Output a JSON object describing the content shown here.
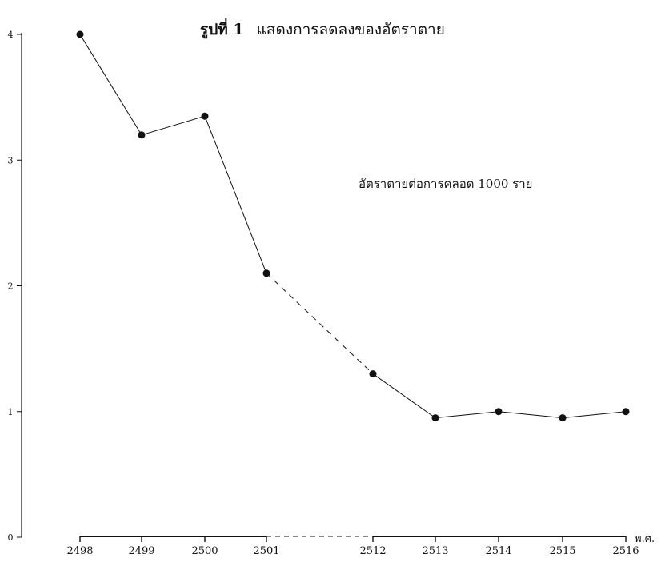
{
  "chart_data": {
    "type": "line",
    "title_figure": "รูปที่ 1",
    "title": "แสดงการลดลงของอัตราตาย",
    "annotation": "อัตราตายต่อการคลอด 1000 ราย",
    "xlabel": "พ.ศ.",
    "ylabel": "",
    "x_categories": [
      "2498",
      "2499",
      "2500",
      "2501",
      "2512",
      "2513",
      "2514",
      "2515",
      "2516"
    ],
    "y_ticks": [
      "0",
      "1",
      "2",
      "3",
      "4"
    ],
    "ylim": [
      0,
      4
    ],
    "series": [
      {
        "values": [
          4.0,
          3.2,
          3.35,
          2.1,
          1.3,
          0.95,
          1.0,
          0.95,
          1.0
        ]
      }
    ],
    "segment_styles": [
      "solid",
      "solid",
      "solid",
      "dashed",
      "solid",
      "solid",
      "solid",
      "solid"
    ],
    "axis_gap_after_category": "2501",
    "colors": {
      "line": "#111111",
      "marker": "#111111"
    }
  }
}
